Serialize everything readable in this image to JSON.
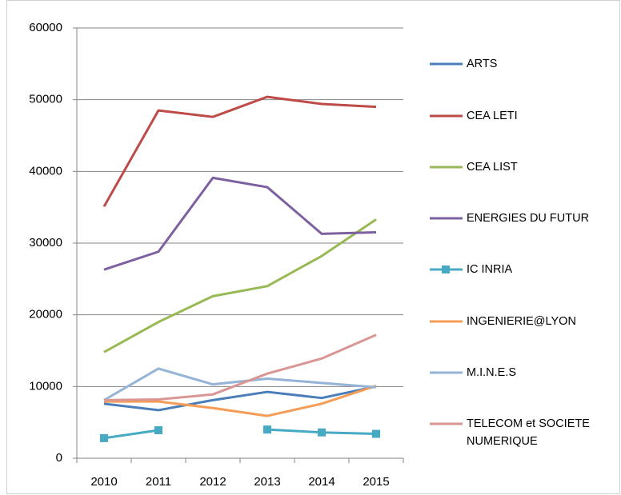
{
  "chart_data": {
    "type": "line",
    "categories": [
      "2010",
      "2011",
      "2012",
      "2013",
      "2014",
      "2015"
    ],
    "ylim": [
      0,
      60000
    ],
    "yticks": [
      0,
      10000,
      20000,
      30000,
      40000,
      50000,
      60000
    ],
    "grid": true,
    "legend": "right",
    "series": [
      {
        "name": "ARTS",
        "color": "#4a7ebb",
        "values": [
          7600,
          6700,
          8100,
          9250,
          8400,
          10000
        ]
      },
      {
        "name": "CEA LETI",
        "color": "#be4b48",
        "values": [
          35100,
          48500,
          47600,
          50400,
          49400,
          49000
        ]
      },
      {
        "name": "CEA LIST",
        "color": "#98b954",
        "values": [
          14800,
          19000,
          22600,
          24000,
          28200,
          33300
        ]
      },
      {
        "name": "ENERGIES DU FUTUR",
        "color": "#7d60a0",
        "values": [
          26300,
          28800,
          39100,
          37800,
          31300,
          31500
        ]
      },
      {
        "name": "IC INRIA",
        "color": "#46aac5",
        "marker": "square",
        "values": [
          2800,
          3900,
          null,
          4000,
          3600,
          3400
        ]
      },
      {
        "name": "INGENIERIE@LYON",
        "color": "#f59d56",
        "values": [
          7900,
          7900,
          7000,
          5900,
          7600,
          10100
        ]
      },
      {
        "name": "M.I.N.E.S",
        "color": "#94b3d6",
        "values": [
          8100,
          12500,
          10300,
          11100,
          10500,
          9900
        ]
      },
      {
        "name": "TELECOM et SOCIETE NUMERIQUE",
        "color": "#da9694",
        "values": [
          8100,
          8200,
          8900,
          11800,
          13900,
          17200
        ]
      }
    ]
  }
}
